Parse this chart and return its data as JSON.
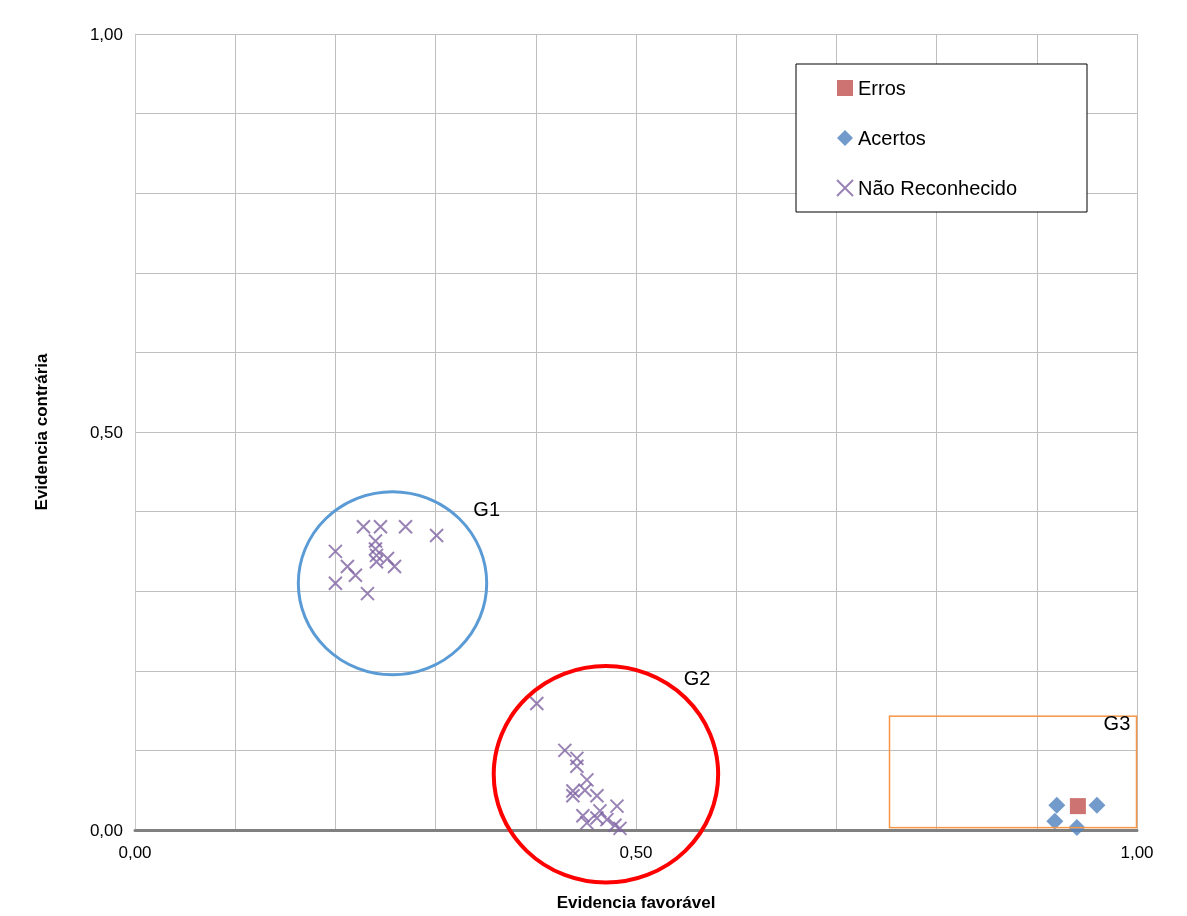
{
  "chart_data": {
    "type": "scatter",
    "xlabel": "Evidencia favorável",
    "ylabel": "Evidencia contrária",
    "xlim": [
      0,
      1
    ],
    "ylim": [
      0,
      1
    ],
    "xticks": [
      {
        "value": 0,
        "label": "0,00"
      },
      {
        "value": 0.1,
        "label": null
      },
      {
        "value": 0.2,
        "label": null
      },
      {
        "value": 0.3,
        "label": null
      },
      {
        "value": 0.4,
        "label": null
      },
      {
        "value": 0.5,
        "label": "0,50"
      },
      {
        "value": 0.6,
        "label": null
      },
      {
        "value": 0.7,
        "label": null
      },
      {
        "value": 0.8,
        "label": null
      },
      {
        "value": 0.9,
        "label": null
      },
      {
        "value": 1,
        "label": "1,00"
      }
    ],
    "yticks": [
      {
        "value": 0,
        "label": "0,00"
      },
      {
        "value": 0.1,
        "label": null
      },
      {
        "value": 0.2,
        "label": null
      },
      {
        "value": 0.3,
        "label": null
      },
      {
        "value": 0.4,
        "label": null
      },
      {
        "value": 0.5,
        "label": "0,50"
      },
      {
        "value": 0.6,
        "label": null
      },
      {
        "value": 0.7,
        "label": null
      },
      {
        "value": 0.8,
        "label": null
      },
      {
        "value": 0.9,
        "label": null
      },
      {
        "value": 1,
        "label": "1,00"
      }
    ],
    "grid": true,
    "legend": "top right",
    "series": [
      {
        "name": "Erros",
        "color": "#c0504d",
        "marker": "square",
        "x": [
          0.941
        ],
        "values": [
          0.03
        ]
      },
      {
        "name": "Acertos",
        "color": "#4f81bd",
        "marker": "diamond",
        "x": [
          0.92,
          0.96,
          0.918,
          0.94
        ],
        "values": [
          0.031,
          0.031,
          0.011,
          0.003
        ]
      },
      {
        "name": "Não Reconhecido",
        "color": "#8064a2",
        "marker": "cross",
        "x": [
          0.228,
          0.245,
          0.27,
          0.301,
          0.2,
          0.24,
          0.24,
          0.241,
          0.252,
          0.212,
          0.259,
          0.241,
          0.22,
          0.2,
          0.232,
          0.401,
          0.429,
          0.441,
          0.441,
          0.451,
          0.437,
          0.437,
          0.449,
          0.461,
          0.481,
          0.447,
          0.461,
          0.471,
          0.451,
          0.479,
          0.484,
          0.464
        ],
        "values": [
          0.381,
          0.381,
          0.381,
          0.37,
          0.35,
          0.363,
          0.353,
          0.345,
          0.341,
          0.331,
          0.331,
          0.337,
          0.32,
          0.31,
          0.297,
          0.159,
          0.1,
          0.09,
          0.08,
          0.063,
          0.049,
          0.043,
          0.05,
          0.043,
          0.03,
          0.018,
          0.015,
          0.013,
          0.009,
          0.006,
          0.002,
          0.024
        ]
      }
    ],
    "annotations": [
      "G1",
      "G2",
      "G3"
    ]
  }
}
